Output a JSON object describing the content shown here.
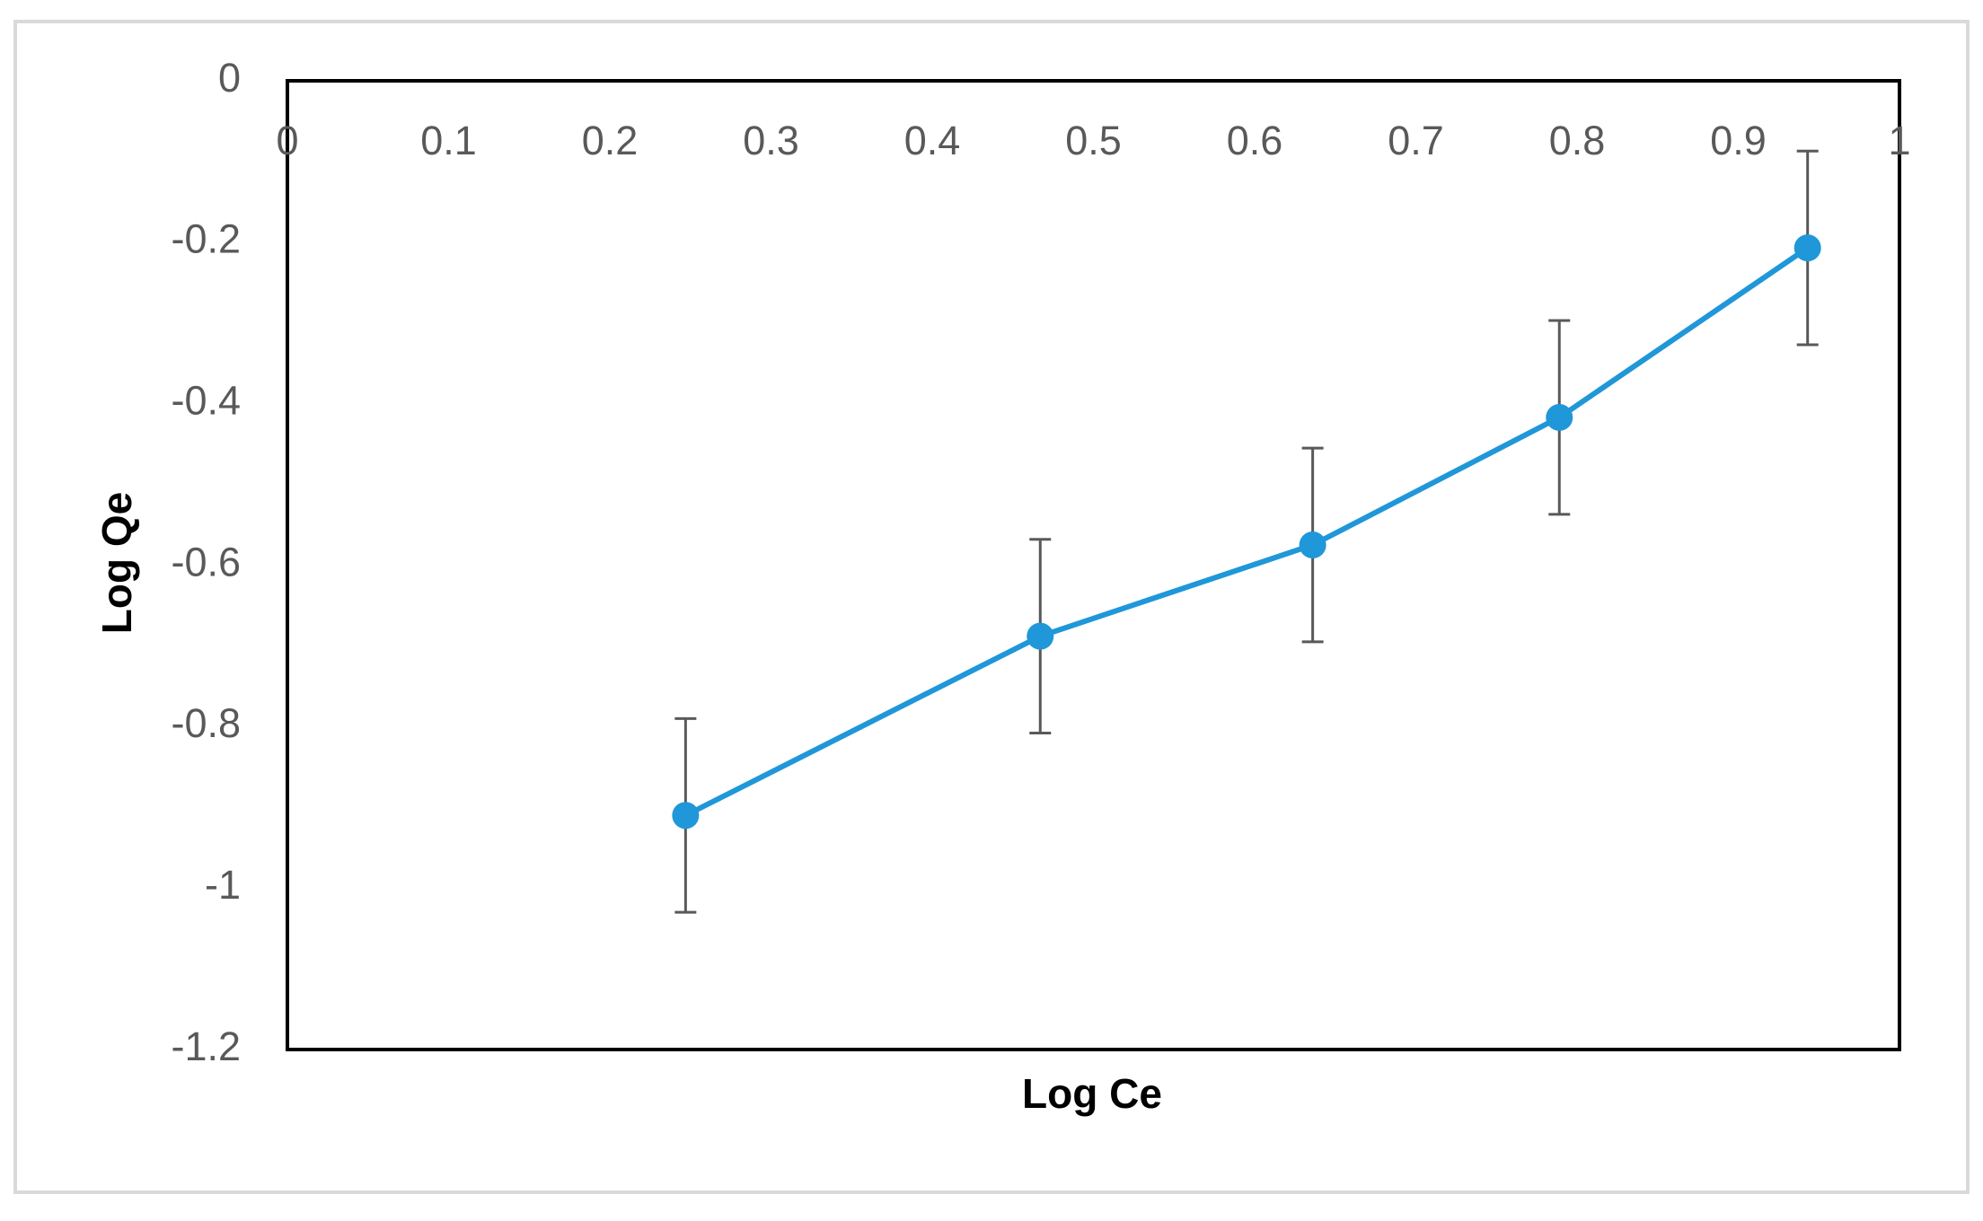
{
  "chart_data": {
    "type": "line",
    "x_label": "Log Ce",
    "y_label": "Log Qe",
    "x": [
      0.247,
      0.467,
      0.636,
      0.789,
      0.943
    ],
    "series": [
      {
        "color": "#1f97d9",
        "values": [
          -0.91,
          -0.688,
          -0.575,
          -0.417,
          -0.207
        ],
        "errors": [
          0.12,
          0.12,
          0.12,
          0.12,
          0.12
        ]
      }
    ],
    "error_color": "#595959",
    "xlim": [
      0,
      1
    ],
    "xticks": [
      0,
      0.1,
      0.2,
      0.3,
      0.4,
      0.5,
      0.6,
      0.7,
      0.8,
      0.9,
      1
    ],
    "ylim": [
      -1.2,
      0
    ],
    "yticks": [
      0,
      -0.2,
      -0.4,
      -0.6,
      -0.8,
      -1,
      -1.2
    ],
    "grid": false
  }
}
